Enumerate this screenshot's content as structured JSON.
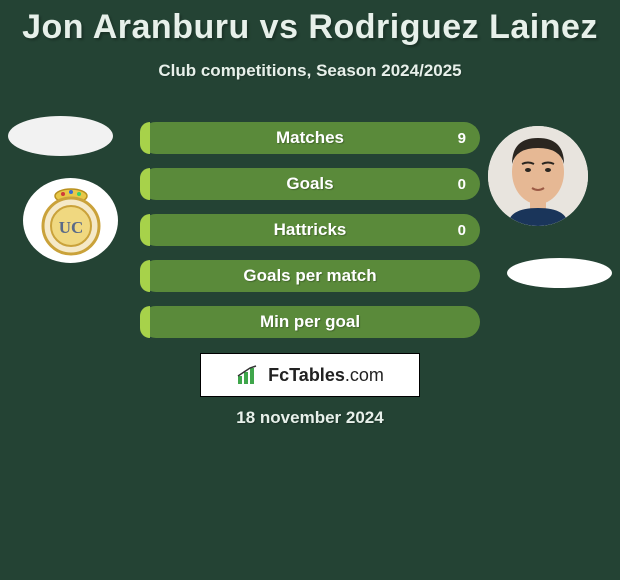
{
  "background_color": "#244334",
  "text_color": "#e7f0ea",
  "title": "Jon Aranburu vs Rodriguez Lainez",
  "title_fontsize": 34,
  "subtitle": "Club competitions, Season 2024/2025",
  "subtitle_fontsize": 17,
  "date": "18 november 2024",
  "bar_track_color": "#5a8a3a",
  "bar_fill_color": "#a7d24a",
  "bar_label_color": "#ffffff",
  "bars": [
    {
      "label": "Matches",
      "left": "",
      "right": "9",
      "fill_pct": 3
    },
    {
      "label": "Goals",
      "left": "",
      "right": "0",
      "fill_pct": 3
    },
    {
      "label": "Hattricks",
      "left": "",
      "right": "0",
      "fill_pct": 3
    },
    {
      "label": "Goals per match",
      "left": "",
      "right": "",
      "fill_pct": 3
    },
    {
      "label": "Min per goal",
      "left": "",
      "right": "",
      "fill_pct": 3
    }
  ],
  "player1": {
    "name": "Jon Aranburu",
    "avatar_bg": "#f2f2f2"
  },
  "player2": {
    "name": "Rodriguez Lainez",
    "avatar_bg": "#ffffff"
  },
  "club1": {
    "badge_stroke": "#caa23a",
    "badge_fill": "#f5e9c8",
    "badge_inner": "#f0d880",
    "badge_text": "UC"
  },
  "logo": {
    "brand": "FcTables",
    "suffix": ".com",
    "icon_color": "#3fa64b"
  }
}
